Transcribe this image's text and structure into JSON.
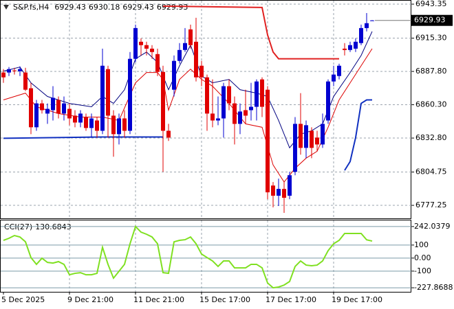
{
  "chart_data": {
    "type": "candlestick",
    "header": {
      "symbol": "S&P.fs,H4",
      "open": 6929.43,
      "high": 6930.18,
      "low": 6929.43,
      "close": 6929.93
    },
    "last_price": 6929.93,
    "up_color": "#0000d0",
    "down_color": "#e00000",
    "grid": true,
    "ylim": [
      6766.5,
      6946.2
    ],
    "yticks": [
      6943.35,
      {
        "value": 6915.3,
        "label": "6915.30"
      },
      {
        "value": 6887.8,
        "label": "6887.80"
      },
      {
        "value": 6860.3,
        "label": "6860.30"
      },
      {
        "value": 6832.8,
        "label": "6832.80"
      },
      6804.75,
      6777.25
    ],
    "categories": [
      "5 Dec 2025",
      null,
      null,
      null,
      null,
      null,
      null,
      null,
      null,
      null,
      null,
      null,
      "9 Dec 21:00",
      null,
      null,
      null,
      null,
      null,
      null,
      null,
      null,
      null,
      null,
      null,
      "11 Dec 21:00",
      null,
      null,
      null,
      null,
      null,
      null,
      null,
      null,
      null,
      null,
      null,
      "15 Dec 17:00",
      null,
      null,
      null,
      null,
      null,
      null,
      null,
      null,
      null,
      null,
      null,
      "17 Dec 17:00",
      null,
      null,
      null,
      null,
      null,
      null,
      null,
      null,
      null,
      null,
      null,
      "19 Dec 17:00",
      null,
      null,
      null,
      null,
      null,
      null,
      null
    ],
    "open": [
      6886.9,
      6886.9,
      6888.6,
      6888.0,
      6886.9,
      6873.9,
      6841.7,
      6861.4,
      6853.0,
      6855.8,
      6864.3,
      6853.0,
      6856.9,
      6851.3,
      6845.6,
      6850.1,
      6841.1,
      6847.3,
      6838.8,
      6889.7,
      6851.3,
      6836.0,
      6849.0,
      6838.8,
      6898.2,
      6912.3,
      6909.5,
      6906.6,
      6902.1,
      6887.4,
      6838.8,
      6872.7,
      6896.5,
      6905.5,
      6922.5,
      6912.3,
      6892.5,
      6882.9,
      6853.0,
      6847.3,
      6849.0,
      6875.6,
      6861.4,
      6844.5,
      6855.8,
      6855.8,
      6858.6,
      6881.2,
      6872.7,
      6793.6,
      6785.2,
      6790.8,
      6785.2,
      6804.9,
      6844.5,
      6824.7,
      6838.8,
      6833.2,
      6827.5,
      6847.3,
      6879.5,
      6884.0,
      6906.6,
      6905.5,
      6906.6,
      6911.2,
      6923.6,
      6929.43
    ],
    "high": [
      6889.7,
      6891.4,
      6890.8,
      6892.0,
      6890.8,
      6878.4,
      6864.3,
      6864.3,
      6861.4,
      6875.6,
      6867.1,
      6867.1,
      6861.4,
      6855.8,
      6855.8,
      6853.0,
      6853.0,
      6850.1,
      6906.6,
      6892.5,
      6855.8,
      6853.0,
      6855.8,
      6903.8,
      6926.4,
      6915.1,
      6912.3,
      6909.5,
      6906.6,
      6892.5,
      6844.5,
      6901.0,
      6911.2,
      6923.6,
      6926.4,
      6932.1,
      6896.5,
      6885.2,
      6881.2,
      6867.1,
      6878.4,
      6881.2,
      6867.1,
      6861.4,
      6872.7,
      6878.4,
      6881.2,
      6882.9,
      6875.6,
      6796.5,
      6799.3,
      6796.5,
      6804.9,
      6850.1,
      6869.9,
      6847.3,
      6841.7,
      6838.8,
      6853.0,
      6881.2,
      6892.5,
      6894.2,
      6911.2,
      6912.3,
      6915.1,
      6926.4,
      6936.0,
      6930.18
    ],
    "low": [
      6878.4,
      6884.0,
      6885.2,
      6884.0,
      6871.6,
      6836.0,
      6838.8,
      6853.0,
      6844.5,
      6847.3,
      6849.0,
      6847.3,
      6843.4,
      6841.7,
      6841.7,
      6838.8,
      6833.2,
      6833.2,
      6836.0,
      6833.2,
      6817.4,
      6827.5,
      6833.2,
      6836.0,
      6895.3,
      6901.0,
      6901.0,
      6898.2,
      6884.0,
      6804.9,
      6830.4,
      6867.1,
      6894.2,
      6903.8,
      6906.6,
      6879.5,
      6875.6,
      6838.8,
      6841.7,
      6843.4,
      6833.2,
      6855.8,
      6827.5,
      6836.0,
      6844.5,
      6847.3,
      6847.3,
      6850.1,
      6782.3,
      6775.6,
      6776.7,
      6771.0,
      6782.3,
      6802.1,
      6819.1,
      6816.2,
      6816.2,
      6821.9,
      6824.7,
      6844.5,
      6875.6,
      6881.2,
      6901.0,
      6903.8,
      6903.8,
      6909.5,
      6920.8,
      6929.43
    ],
    "close": [
      6882.9,
      6889.7,
      6888.0,
      6889.7,
      6872.7,
      6841.7,
      6861.4,
      6855.8,
      6856.9,
      6866.0,
      6853.0,
      6861.4,
      6849.0,
      6845.6,
      6853.0,
      6841.1,
      6849.0,
      6838.8,
      6892.5,
      6851.3,
      6836.0,
      6849.0,
      6838.8,
      6898.2,
      6923.6,
      6909.5,
      6906.6,
      6903.8,
      6887.4,
      6838.8,
      6833.2,
      6896.5,
      6905.5,
      6911.2,
      6909.5,
      6882.9,
      6882.9,
      6853.0,
      6847.3,
      6849.0,
      6875.6,
      6861.4,
      6844.5,
      6854.7,
      6851.3,
      6858.6,
      6879.5,
      6858.6,
      6788.0,
      6785.2,
      6790.8,
      6783.5,
      6802.1,
      6844.5,
      6824.7,
      6843.4,
      6824.7,
      6827.5,
      6844.5,
      6879.5,
      6885.2,
      6892.5,
      6905.5,
      6909.5,
      6912.3,
      6923.6,
      6927.6,
      6929.93
    ],
    "overlays": [
      {
        "color": "#000080",
        "width": 1,
        "x": [
          0,
          3,
          5,
          8,
          12,
          16,
          18,
          20,
          22,
          24,
          26,
          28,
          29,
          30,
          32,
          34,
          36,
          38,
          41,
          43,
          46,
          48,
          50,
          52,
          54,
          56,
          58,
          60,
          63,
          65,
          67
        ],
        "values": [
          6888.0,
          6891.4,
          6878.4,
          6867.1,
          6861.4,
          6858.6,
          6867.1,
          6861.4,
          6872.7,
          6898.2,
          6903.8,
          6895.3,
          6884.0,
          6872.7,
          6892.5,
          6909.5,
          6884.0,
          6878.4,
          6881.2,
          6872.7,
          6869.9,
          6867.1,
          6847.3,
          6824.7,
          6836.0,
          6838.8,
          6844.5,
          6867.1,
          6886.9,
          6901.0,
          6920.8
        ]
      },
      {
        "color": "#dd0000",
        "width": 1,
        "x": [
          0,
          4,
          6,
          10,
          14,
          18,
          21,
          24,
          26,
          28,
          29,
          30,
          32,
          34,
          36,
          38,
          41,
          44,
          47,
          49,
          51,
          53,
          55,
          57,
          59,
          61,
          63,
          65,
          67
        ],
        "values": [
          6864.3,
          6869.9,
          6858.6,
          6853.0,
          6850.1,
          6850.1,
          6847.3,
          6878.4,
          6886.9,
          6886.9,
          6881.2,
          6855.8,
          6881.2,
          6889.7,
          6881.2,
          6875.6,
          6861.4,
          6844.5,
          6841.7,
          6810.6,
          6796.5,
          6807.8,
          6816.2,
          6821.9,
          6841.7,
          6864.3,
          6878.4,
          6892.5,
          6906.6
        ]
      },
      {
        "color": "#e02020",
        "width": 2,
        "x": [
          29,
          47,
          48,
          49,
          50,
          61
        ],
        "values": [
          6941.7,
          6940.6,
          6917.9,
          6903.8,
          6898.2,
          6898.2
        ]
      },
      {
        "color": "#1030c0",
        "width": 2,
        "x": [
          0,
          18,
          29
        ],
        "values": [
          6832.6,
          6833.7,
          6833.7
        ]
      },
      {
        "color": "#1030c0",
        "width": 2,
        "x": [
          62,
          63,
          64,
          65,
          66,
          67
        ],
        "values": [
          6806.1,
          6813.4,
          6833.2,
          6861.4,
          6864.3,
          6864.3
        ]
      }
    ],
    "indicator": {
      "type": "line",
      "name": "CCI(27)",
      "value": 130.6843,
      "color": "#7fe020",
      "ylim": [
        -259,
        289
      ],
      "yticks": [
        242.0379,
        100,
        {
          "value": 0,
          "label": "0.00"
        },
        -100,
        -227.8688
      ],
      "values": [
        136,
        152,
        173,
        162,
        125,
        4,
        -48,
        -1,
        -33,
        -38,
        -27,
        -48,
        -128,
        -117,
        -112,
        -128,
        -128,
        -117,
        83,
        -48,
        -154,
        -101,
        -48,
        110,
        242.0379,
        199,
        183,
        162,
        110,
        -112,
        -117,
        125,
        136,
        141,
        162,
        110,
        31,
        4,
        -22,
        -64,
        -22,
        -22,
        -75,
        -75,
        -75,
        -48,
        -48,
        -75,
        -191,
        -227.8688,
        -222,
        -207,
        -180,
        -64,
        -22,
        -54,
        -59,
        -54,
        -22,
        57,
        110,
        136,
        189,
        189,
        189,
        189,
        140,
        130.6843
      ]
    }
  }
}
